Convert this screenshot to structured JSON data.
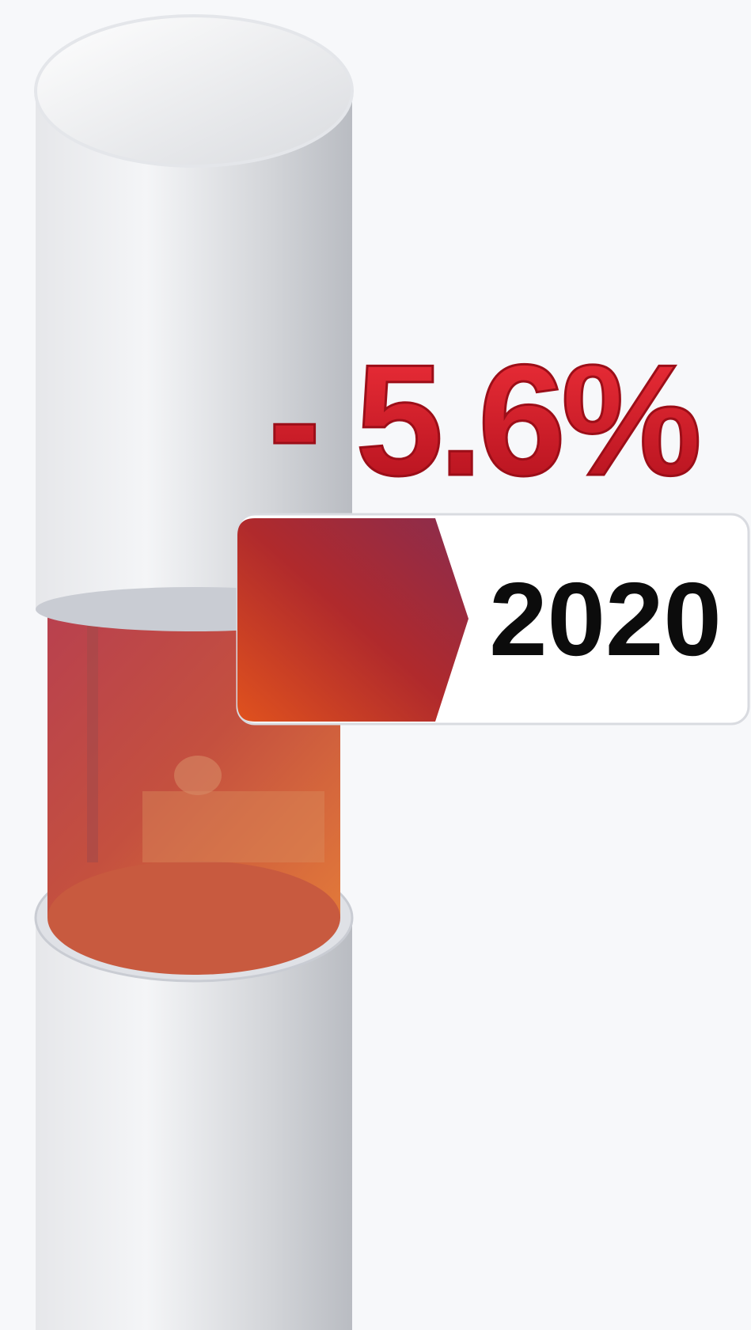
{
  "headline": {
    "change": "- 5.6%",
    "year": "2020"
  }
}
